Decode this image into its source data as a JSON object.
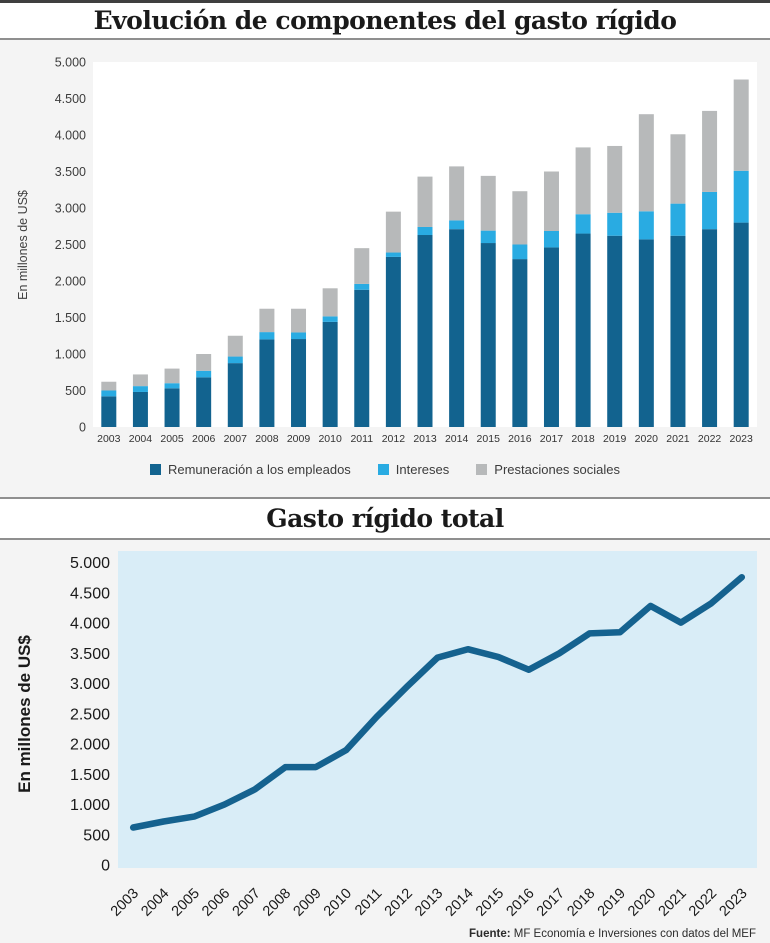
{
  "colors": {
    "remuneracion": "#12638f",
    "intereses": "#29abe2",
    "prestaciones": "#b7b9ba",
    "line": "#15628f",
    "chart_bg": "#f4f4f4",
    "plot_bg_bar": "#ffffff",
    "plot_bg_line": "#d9edf7",
    "border": "#8f8f8f",
    "text": "#3c3c3c"
  },
  "source": {
    "label": "Fuente:",
    "text": " MF Economía e Inversiones con datos del MEF"
  },
  "chart_data": [
    {
      "type": "bar",
      "stacked": true,
      "title": "Evolución de componentes del gasto rígido",
      "ylabel": "En millones de US$",
      "xlabel": "",
      "ylim": [
        0,
        5000
      ],
      "ytick_step": 500,
      "ytick_labels": [
        "0",
        "500",
        "1.000",
        "1.500",
        "2.000",
        "2.500",
        "3.000",
        "3.500",
        "4.000",
        "4.500",
        "5.000"
      ],
      "grid": false,
      "legend_position": "bottom",
      "categories": [
        "2003",
        "2004",
        "2005",
        "2006",
        "2007",
        "2008",
        "2009",
        "2010",
        "2011",
        "2012",
        "2013",
        "2014",
        "2015",
        "2016",
        "2017",
        "2018",
        "2019",
        "2020",
        "2021",
        "2022",
        "2023"
      ],
      "series": [
        {
          "name": "Remuneración a los empleados",
          "color": "#12638f",
          "values": [
            420,
            480,
            530,
            680,
            875,
            1200,
            1205,
            1440,
            1880,
            2330,
            2630,
            2710,
            2520,
            2300,
            2460,
            2650,
            2620,
            2570,
            2620,
            2710,
            2800
          ]
        },
        {
          "name": "Intereses",
          "color": "#29abe2",
          "values": [
            80,
            80,
            70,
            90,
            90,
            100,
            90,
            75,
            80,
            60,
            110,
            120,
            170,
            200,
            225,
            265,
            315,
            385,
            440,
            510,
            710
          ]
        },
        {
          "name": "Prestaciones sociales",
          "color": "#b7b9ba",
          "values": [
            120,
            160,
            200,
            230,
            285,
            320,
            325,
            385,
            490,
            560,
            690,
            740,
            750,
            730,
            815,
            915,
            915,
            1330,
            950,
            1110,
            1250
          ]
        }
      ]
    },
    {
      "type": "line",
      "title": "Gasto rígido total",
      "ylabel": "En millones de US$",
      "xlabel": "",
      "ylim": [
        0,
        5000
      ],
      "ytick_step": 500,
      "ytick_labels": [
        "0",
        "500",
        "1.000",
        "1.500",
        "2.000",
        "2.500",
        "3.000",
        "3.500",
        "4.000",
        "4.500",
        "5.000"
      ],
      "grid": false,
      "legend_position": "none",
      "x": [
        "2003",
        "2004",
        "2005",
        "2006",
        "2007",
        "2008",
        "2009",
        "2010",
        "2011",
        "2012",
        "2013",
        "2014",
        "2015",
        "2016",
        "2017",
        "2018",
        "2019",
        "2020",
        "2021",
        "2022",
        "2023"
      ],
      "values": [
        620,
        720,
        800,
        1000,
        1250,
        1620,
        1620,
        1900,
        2450,
        2950,
        3430,
        3570,
        3440,
        3230,
        3500,
        3830,
        3850,
        4285,
        4010,
        4330,
        4760
      ]
    }
  ]
}
